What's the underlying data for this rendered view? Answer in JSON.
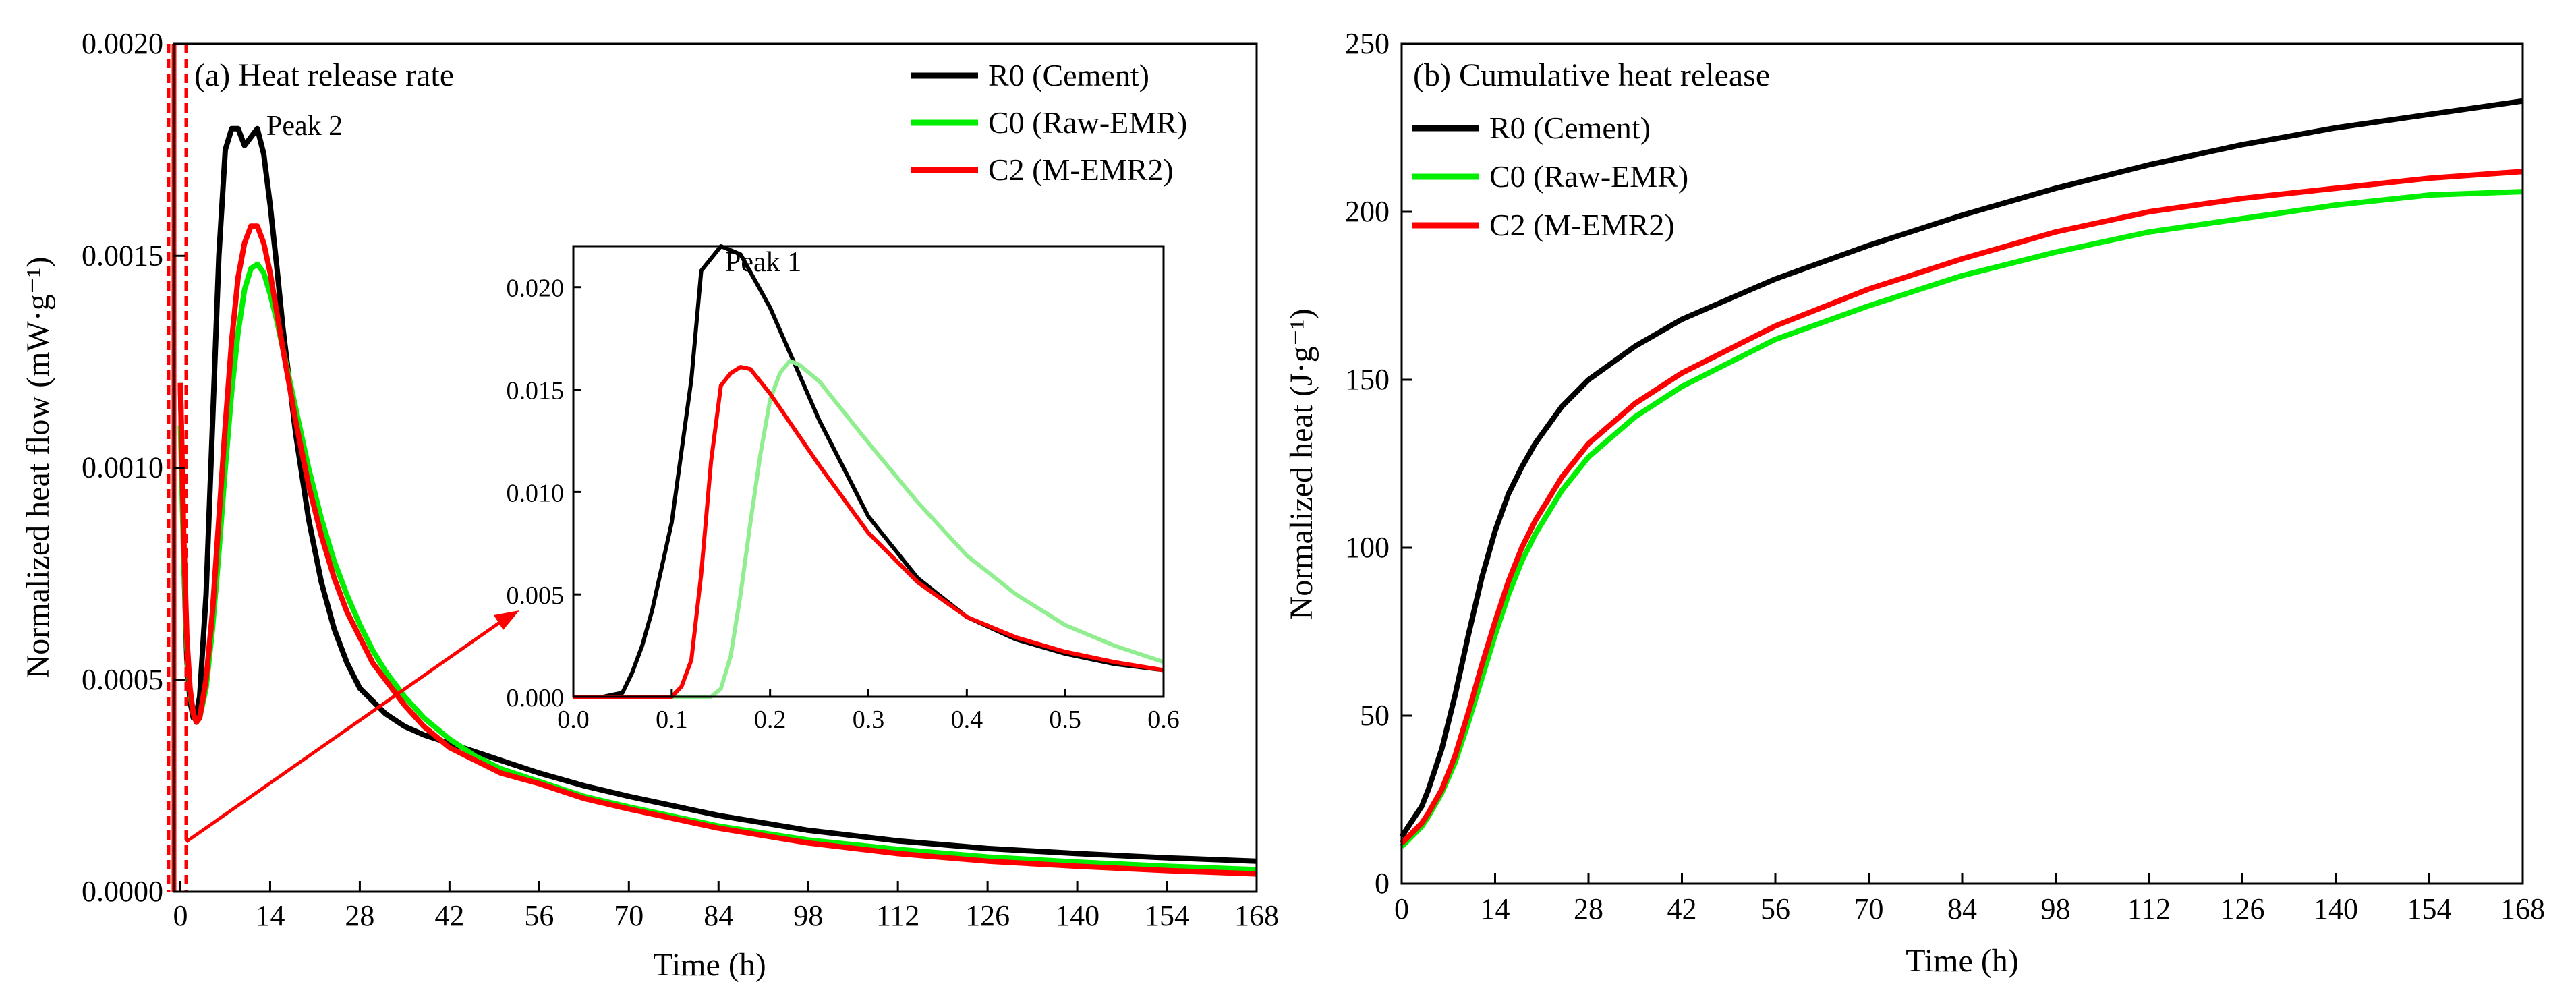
{
  "chart_data": [
    {
      "type": "line",
      "panel": "a",
      "title": "(a) Heat release rate",
      "xlabel": "Time (h)",
      "ylabel": "Normalized heat flow (mW·g⁻¹)",
      "xlim": [
        -1,
        168
      ],
      "ylim": [
        0,
        0.002
      ],
      "xticks": [
        "0",
        "14",
        "28",
        "42",
        "56",
        "70",
        "84",
        "98",
        "112",
        "126",
        "140",
        "154",
        "168"
      ],
      "yticks": [
        "0.0000",
        "0.0005",
        "0.0010",
        "0.0015",
        "0.0020"
      ],
      "legend_position": "top-right",
      "annotations": [
        "Peak 2"
      ],
      "series": [
        {
          "name": "R0 (Cement)",
          "color": "#000000",
          "x": [
            0,
            0.5,
            1,
            1.5,
            2,
            2.5,
            3,
            4,
            5,
            6,
            7,
            8,
            9,
            10,
            11,
            12,
            13,
            14,
            15,
            16,
            18,
            20,
            22,
            24,
            26,
            28,
            30,
            32,
            35,
            38,
            42,
            46,
            50,
            56,
            63,
            70,
            84,
            98,
            112,
            126,
            140,
            154,
            168
          ],
          "values": [
            0.0012,
            0.0008,
            0.00055,
            0.00045,
            0.00041,
            0.00042,
            0.00046,
            0.0007,
            0.0011,
            0.0015,
            0.00175,
            0.0018,
            0.0018,
            0.00176,
            0.00178,
            0.0018,
            0.00174,
            0.00162,
            0.00148,
            0.00133,
            0.00108,
            0.00088,
            0.00073,
            0.00062,
            0.00054,
            0.00048,
            0.00045,
            0.00042,
            0.00039,
            0.00037,
            0.00035,
            0.00033,
            0.00031,
            0.00028,
            0.00025,
            0.000225,
            0.00018,
            0.000145,
            0.00012,
            0.000102,
            9e-05,
            8e-05,
            7.2e-05
          ]
        },
        {
          "name": "C0 (Raw-EMR)",
          "color": "#00ee00",
          "x": [
            0,
            0.5,
            1,
            1.5,
            2,
            2.5,
            3,
            4,
            5,
            6,
            7,
            8,
            9,
            10,
            11,
            12,
            13,
            14,
            15,
            16,
            18,
            20,
            22,
            24,
            26,
            28,
            30,
            32,
            35,
            38,
            42,
            46,
            50,
            56,
            63,
            70,
            84,
            98,
            112,
            126,
            140,
            154,
            168
          ],
          "values": [
            0.0011,
            0.0008,
            0.00058,
            0.00047,
            0.00042,
            0.0004,
            0.00041,
            0.00048,
            0.00062,
            0.0008,
            0.001,
            0.00118,
            0.00132,
            0.00142,
            0.00147,
            0.00148,
            0.00146,
            0.00141,
            0.00135,
            0.00128,
            0.00114,
            0.001,
            0.00088,
            0.00078,
            0.0007,
            0.00063,
            0.00057,
            0.00052,
            0.00046,
            0.00041,
            0.00036,
            0.00032,
            0.00029,
            0.00026,
            0.000225,
            0.0002,
            0.000155,
            0.000122,
            0.0001,
            8.2e-05,
            7e-05,
            6e-05,
            5.2e-05
          ]
        },
        {
          "name": "C2 (M-EMR2)",
          "color": "#ff0000",
          "x": [
            0,
            0.5,
            1,
            1.5,
            2,
            2.5,
            3,
            4,
            5,
            6,
            7,
            8,
            9,
            10,
            11,
            12,
            13,
            14,
            15,
            16,
            18,
            20,
            22,
            24,
            26,
            28,
            30,
            32,
            35,
            38,
            42,
            46,
            50,
            56,
            63,
            70,
            84,
            98,
            112,
            126,
            140,
            154,
            168
          ],
          "values": [
            0.0012,
            0.00085,
            0.0006,
            0.00048,
            0.00042,
            0.0004,
            0.00041,
            0.0005,
            0.00066,
            0.00088,
            0.0011,
            0.0013,
            0.00145,
            0.00153,
            0.00157,
            0.00157,
            0.00153,
            0.00146,
            0.00137,
            0.00128,
            0.00111,
            0.00096,
            0.00084,
            0.00074,
            0.00066,
            0.0006,
            0.00054,
            0.0005,
            0.00044,
            0.00039,
            0.00034,
            0.00031,
            0.00028,
            0.000255,
            0.00022,
            0.000195,
            0.00015,
            0.000115,
            9e-05,
            7.2e-05,
            6e-05,
            5e-05,
            4.2e-05
          ]
        }
      ],
      "inset": {
        "type": "line",
        "xlim": [
          0,
          0.6
        ],
        "ylim": [
          0,
          0.022
        ],
        "xticks": [
          "0.0",
          "0.1",
          "0.2",
          "0.3",
          "0.4",
          "0.5",
          "0.6"
        ],
        "yticks": [
          "0.000",
          "0.005",
          "0.010",
          "0.015",
          "0.020"
        ],
        "annotations": [
          "Peak 1"
        ],
        "series": [
          {
            "name": "R0 (Cement)",
            "color": "#000000",
            "x": [
              0,
              0.03,
              0.05,
              0.06,
              0.07,
              0.08,
              0.1,
              0.12,
              0.13,
              0.15,
              0.17,
              0.2,
              0.25,
              0.3,
              0.35,
              0.4,
              0.45,
              0.5,
              0.55,
              0.6
            ],
            "values": [
              0,
              0,
              0.0002,
              0.0012,
              0.0025,
              0.0042,
              0.0085,
              0.0155,
              0.0208,
              0.022,
              0.0216,
              0.019,
              0.0135,
              0.0088,
              0.0058,
              0.0039,
              0.0028,
              0.0021,
              0.0016,
              0.0013
            ]
          },
          {
            "name": "C0 (Raw-EMR)",
            "color": "#90ee90",
            "x": [
              0,
              0.1,
              0.14,
              0.15,
              0.16,
              0.17,
              0.18,
              0.19,
              0.2,
              0.21,
              0.22,
              0.23,
              0.25,
              0.3,
              0.35,
              0.4,
              0.45,
              0.5,
              0.55,
              0.6
            ],
            "values": [
              0,
              0,
              0,
              0.0004,
              0.002,
              0.005,
              0.0085,
              0.0118,
              0.0145,
              0.0158,
              0.0164,
              0.0162,
              0.0154,
              0.0124,
              0.0095,
              0.0069,
              0.005,
              0.0035,
              0.0025,
              0.0017
            ]
          },
          {
            "name": "C2 (M-EMR2)",
            "color": "#ff0000",
            "x": [
              0,
              0.05,
              0.1,
              0.11,
              0.12,
              0.13,
              0.14,
              0.15,
              0.16,
              0.17,
              0.18,
              0.2,
              0.25,
              0.3,
              0.35,
              0.4,
              0.45,
              0.5,
              0.55,
              0.6
            ],
            "values": [
              0,
              0,
              0,
              0.0005,
              0.0018,
              0.006,
              0.0115,
              0.0152,
              0.0158,
              0.0161,
              0.016,
              0.0148,
              0.0113,
              0.008,
              0.0056,
              0.0039,
              0.0029,
              0.0022,
              0.0017,
              0.0013
            ]
          }
        ]
      }
    },
    {
      "type": "line",
      "panel": "b",
      "title": "(b) Cumulative heat release",
      "xlabel": "Time (h)",
      "ylabel": "Normalized heat (J·g⁻¹)",
      "xlim": [
        0,
        168
      ],
      "ylim": [
        0,
        250
      ],
      "xticks": [
        "0",
        "14",
        "28",
        "42",
        "56",
        "70",
        "84",
        "98",
        "112",
        "126",
        "140",
        "154",
        "168"
      ],
      "yticks": [
        "0",
        "50",
        "100",
        "150",
        "200",
        "250"
      ],
      "legend_position": "top-left",
      "series": [
        {
          "name": "R0 (Cement)",
          "color": "#000000",
          "x": [
            0,
            1,
            2,
            3,
            4,
            6,
            8,
            10,
            12,
            14,
            16,
            18,
            20,
            24,
            28,
            35,
            42,
            56,
            70,
            84,
            98,
            112,
            126,
            140,
            154,
            168
          ],
          "values": [
            14,
            17,
            20,
            23,
            28,
            40,
            56,
            74,
            91,
            105,
            116,
            124,
            131,
            142,
            150,
            160,
            168,
            180,
            190,
            199,
            207,
            214,
            220,
            225,
            229,
            233
          ]
        },
        {
          "name": "C0 (Raw-EMR)",
          "color": "#00ee00",
          "x": [
            0,
            1,
            2,
            3,
            4,
            6,
            8,
            10,
            12,
            14,
            16,
            18,
            20,
            24,
            28,
            35,
            42,
            56,
            70,
            84,
            98,
            112,
            126,
            140,
            154,
            168
          ],
          "values": [
            11,
            13,
            15,
            17,
            20,
            27,
            36,
            48,
            61,
            74,
            86,
            96,
            104,
            117,
            127,
            139,
            148,
            162,
            172,
            181,
            188,
            194,
            198,
            202,
            205,
            206
          ]
        },
        {
          "name": "C2 (M-EMR2)",
          "color": "#ff0000",
          "x": [
            0,
            1,
            2,
            3,
            4,
            6,
            8,
            10,
            12,
            14,
            16,
            18,
            20,
            24,
            28,
            35,
            42,
            56,
            70,
            84,
            98,
            112,
            126,
            140,
            154,
            168
          ],
          "values": [
            12,
            14,
            16,
            18,
            21,
            28,
            38,
            51,
            65,
            78,
            90,
            100,
            108,
            121,
            131,
            143,
            152,
            166,
            177,
            186,
            194,
            200,
            204,
            207,
            210,
            212
          ]
        }
      ]
    }
  ]
}
